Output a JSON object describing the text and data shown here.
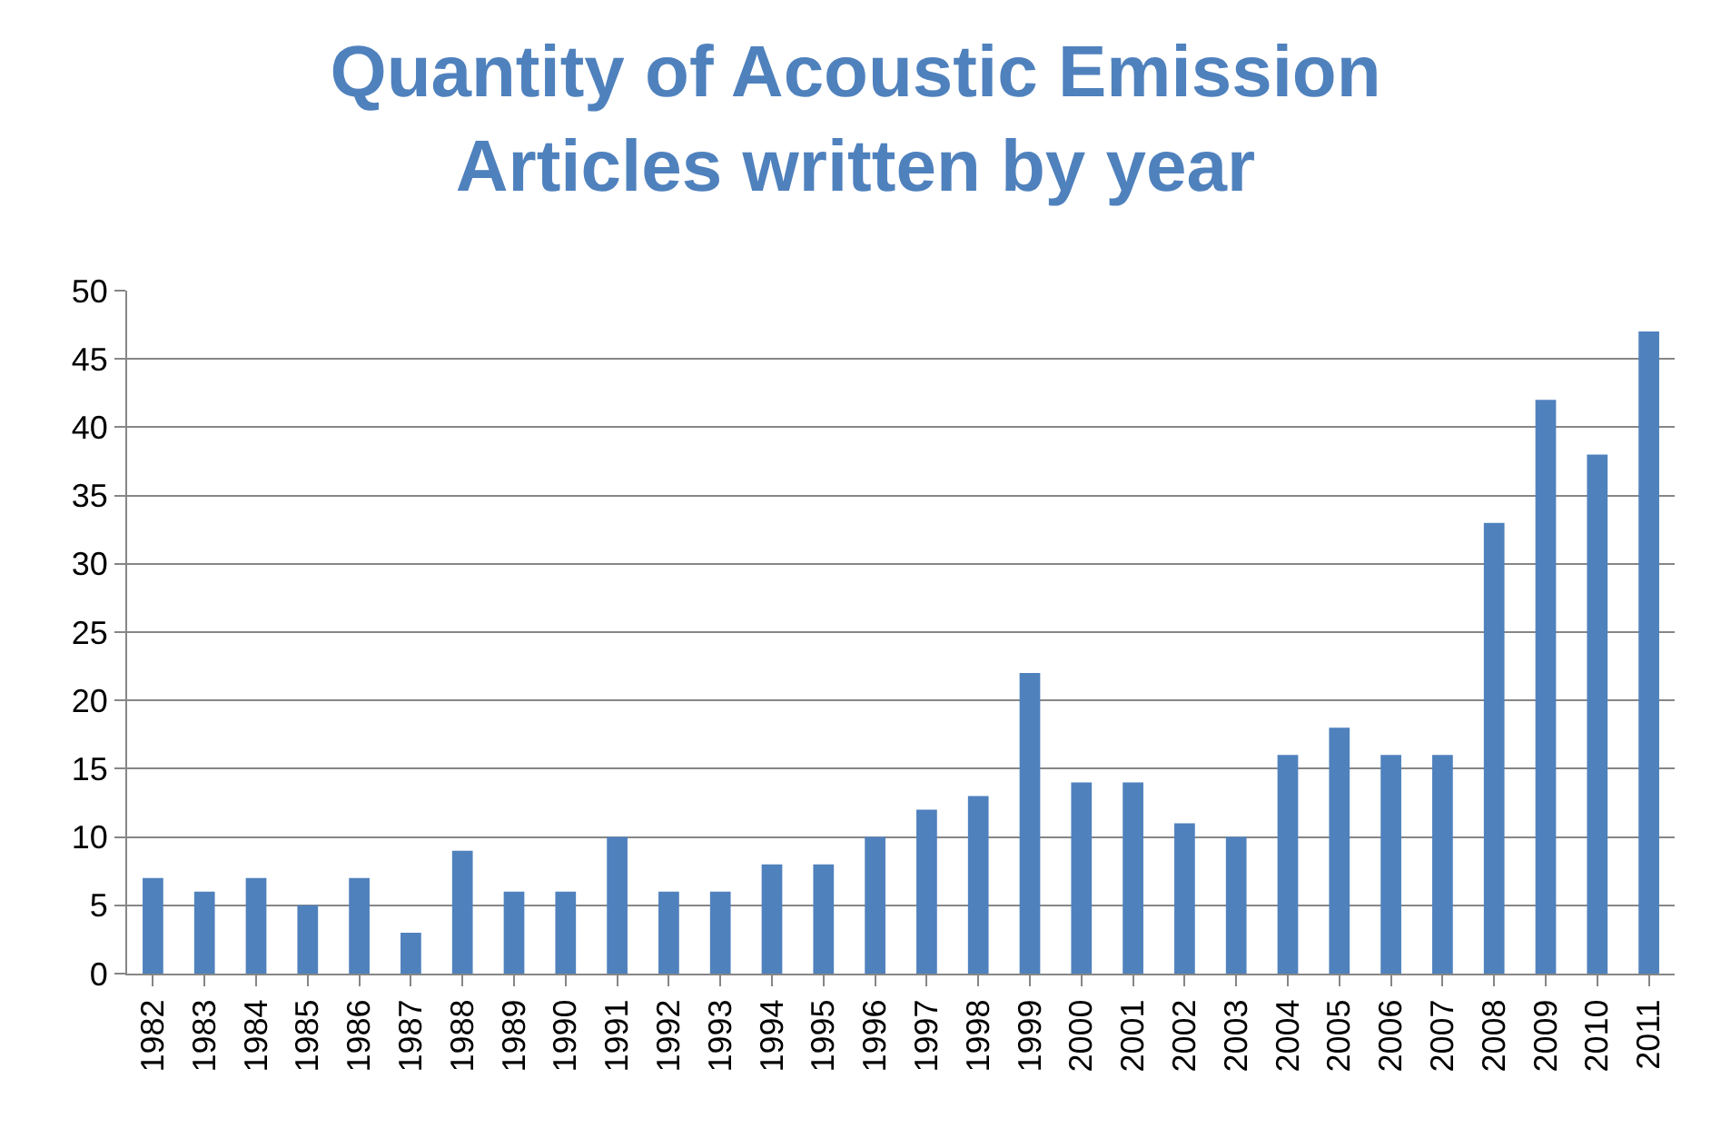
{
  "chart_data": {
    "type": "bar",
    "title": "Quantity of Acoustic Emission\nArticles written by year",
    "categories": [
      "1982",
      "1983",
      "1984",
      "1985",
      "1986",
      "1987",
      "1988",
      "1989",
      "1990",
      "1991",
      "1992",
      "1993",
      "1994",
      "1995",
      "1996",
      "1997",
      "1998",
      "1999",
      "2000",
      "2001",
      "2002",
      "2003",
      "2004",
      "2005",
      "2006",
      "2007",
      "2008",
      "2009",
      "2010",
      "2011"
    ],
    "values": [
      7,
      6,
      7,
      5,
      7,
      3,
      9,
      6,
      6,
      10,
      6,
      6,
      8,
      8,
      10,
      12,
      13,
      22,
      14,
      14,
      11,
      10,
      16,
      18,
      16,
      16,
      33,
      42,
      38,
      47
    ],
    "color": "#4f81bd",
    "ylim": [
      0,
      50
    ],
    "yticks": [
      0,
      5,
      10,
      15,
      20,
      25,
      30,
      35,
      40,
      45,
      50
    ],
    "grid": "y"
  }
}
